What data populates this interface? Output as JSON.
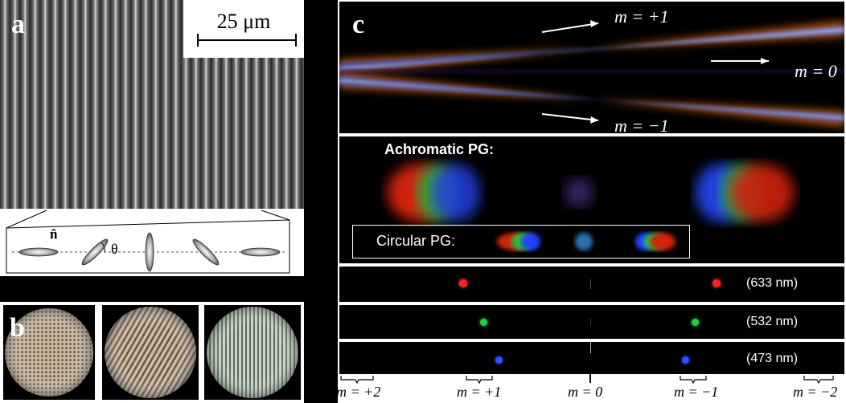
{
  "panel_a": {
    "label": "a",
    "scalebar": "25 μm",
    "director_symbol": "n̂",
    "angle_symbol": "θ"
  },
  "panel_b": {
    "label": "b"
  },
  "panel_c": {
    "label": "c",
    "beam_labels": {
      "plus1": "m = +1",
      "zero": "m = 0",
      "minus1": "m = −1"
    },
    "achromatic_title": "Achromatic PG:",
    "circular_title": "Circular PG:",
    "wavelengths": [
      "(633 nm)",
      "(532 nm)",
      "(473 nm)"
    ],
    "spot_colors": [
      "#ff2020",
      "#20d040",
      "#3050ff"
    ],
    "orders": [
      "m = +2",
      "m = +1",
      "m = 0",
      "m = −1",
      "m = −2"
    ]
  }
}
